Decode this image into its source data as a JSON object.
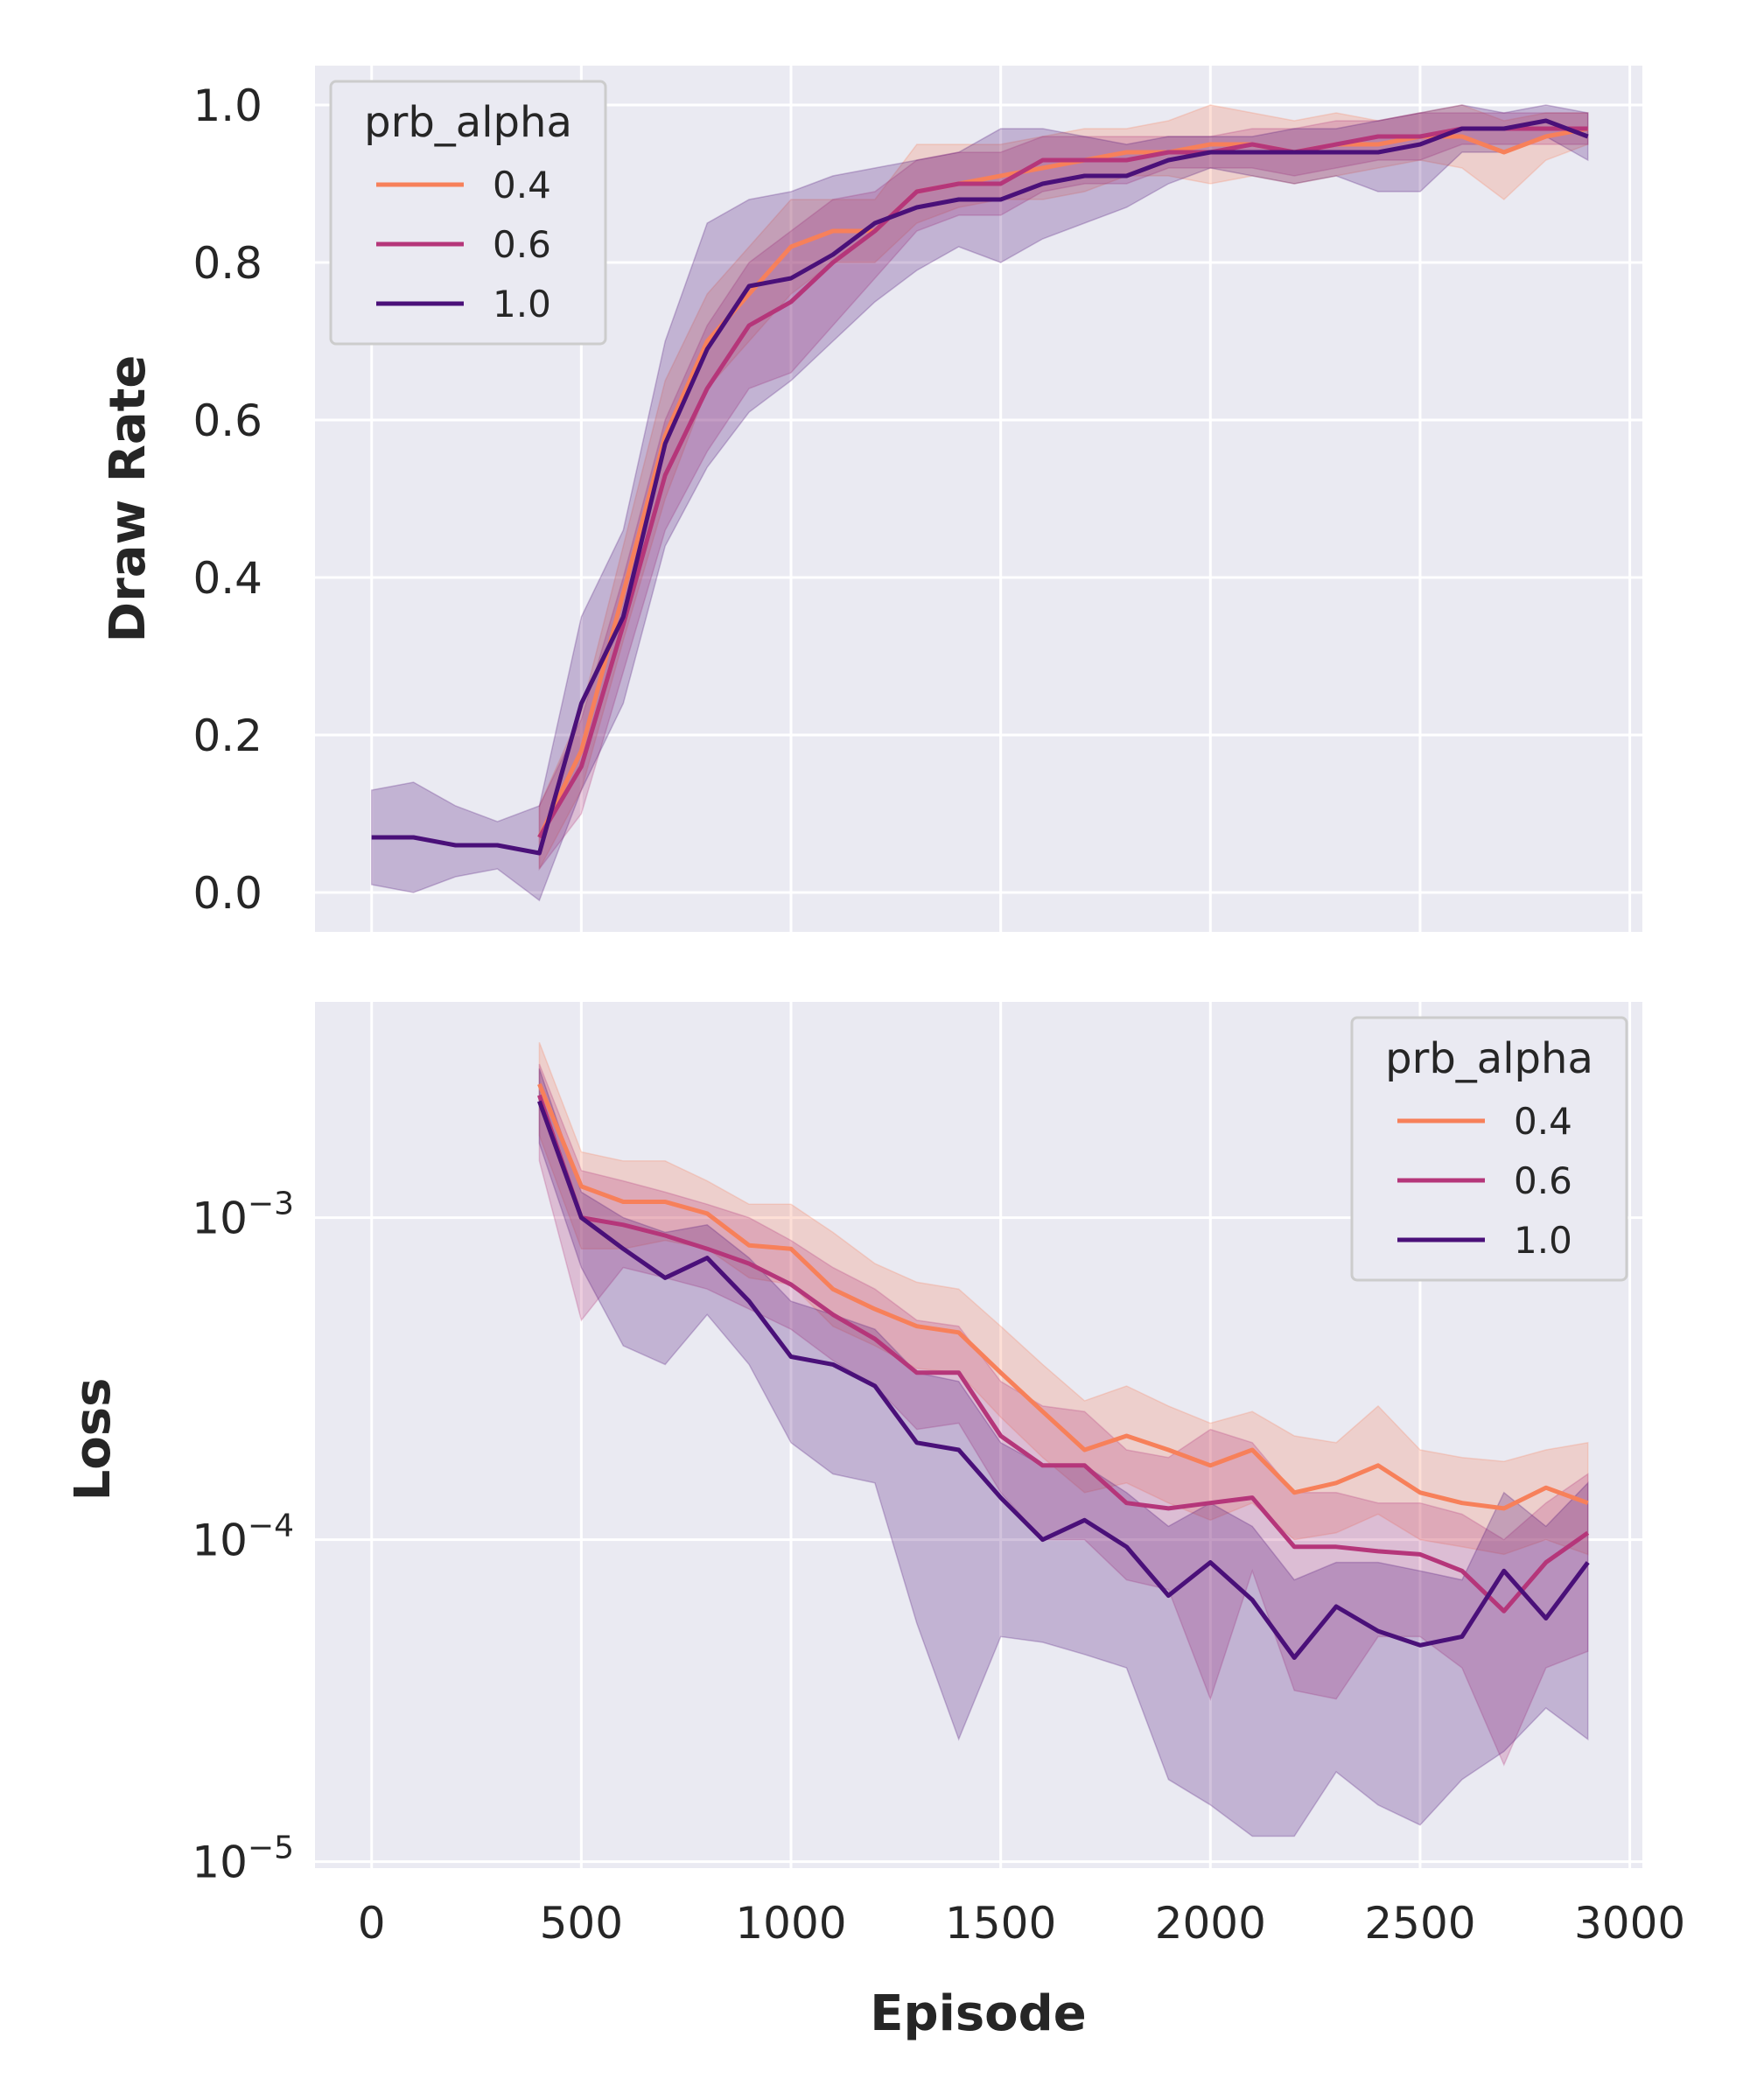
{
  "chart_data": [
    {
      "type": "line",
      "ylabel": "Draw Rate",
      "xlabel": "",
      "xlim": [
        -135,
        3030
      ],
      "ylim": [
        -0.05,
        1.05
      ],
      "y_scale": "linear",
      "yticks": [
        0.0,
        0.2,
        0.4,
        0.6,
        0.8,
        1.0
      ],
      "ytick_labels": [
        "0.0",
        "0.2",
        "0.4",
        "0.6",
        "0.8",
        "1.0"
      ],
      "xticks": [
        0,
        500,
        1000,
        1500,
        2000,
        2500,
        3000
      ],
      "grid": true,
      "legend": {
        "title": "prb_alpha",
        "position": "upper-left"
      },
      "series": [
        {
          "name": "0.4",
          "color": "#f7805a",
          "x": [
            400,
            500,
            600,
            700,
            800,
            900,
            1000,
            1100,
            1200,
            1300,
            1400,
            1500,
            1600,
            1700,
            1800,
            1900,
            2000,
            2100,
            2200,
            2300,
            2400,
            2500,
            2600,
            2700,
            2800,
            2900
          ],
          "y": [
            0.07,
            0.18,
            0.38,
            0.58,
            0.7,
            0.76,
            0.82,
            0.84,
            0.84,
            0.89,
            0.9,
            0.91,
            0.92,
            0.93,
            0.94,
            0.94,
            0.95,
            0.95,
            0.94,
            0.95,
            0.95,
            0.96,
            0.96,
            0.94,
            0.96,
            0.97
          ],
          "lower": [
            0.03,
            0.13,
            0.32,
            0.5,
            0.64,
            0.7,
            0.76,
            0.8,
            0.8,
            0.85,
            0.87,
            0.88,
            0.88,
            0.89,
            0.91,
            0.91,
            0.9,
            0.91,
            0.9,
            0.91,
            0.92,
            0.93,
            0.92,
            0.88,
            0.93,
            0.95
          ],
          "upper": [
            0.11,
            0.23,
            0.44,
            0.65,
            0.76,
            0.82,
            0.88,
            0.88,
            0.88,
            0.95,
            0.95,
            0.95,
            0.96,
            0.97,
            0.97,
            0.98,
            1.0,
            0.99,
            0.98,
            0.99,
            0.98,
            0.99,
            1.0,
            0.98,
            0.99,
            0.99
          ]
        },
        {
          "name": "0.6",
          "color": "#b5367a",
          "x": [
            400,
            500,
            600,
            700,
            800,
            900,
            1000,
            1100,
            1200,
            1300,
            1400,
            1500,
            1600,
            1700,
            1800,
            1900,
            2000,
            2100,
            2200,
            2300,
            2400,
            2500,
            2600,
            2700,
            2800,
            2900
          ],
          "y": [
            0.07,
            0.16,
            0.34,
            0.53,
            0.64,
            0.72,
            0.75,
            0.8,
            0.84,
            0.89,
            0.9,
            0.9,
            0.93,
            0.93,
            0.93,
            0.94,
            0.94,
            0.95,
            0.94,
            0.95,
            0.96,
            0.96,
            0.97,
            0.97,
            0.97,
            0.97
          ],
          "lower": [
            0.03,
            0.1,
            0.28,
            0.46,
            0.56,
            0.64,
            0.66,
            0.72,
            0.78,
            0.84,
            0.86,
            0.86,
            0.89,
            0.9,
            0.9,
            0.92,
            0.92,
            0.92,
            0.91,
            0.92,
            0.93,
            0.93,
            0.95,
            0.95,
            0.95,
            0.95
          ],
          "upper": [
            0.11,
            0.22,
            0.4,
            0.6,
            0.72,
            0.8,
            0.84,
            0.88,
            0.89,
            0.93,
            0.94,
            0.94,
            0.96,
            0.96,
            0.96,
            0.96,
            0.96,
            0.97,
            0.97,
            0.98,
            0.98,
            0.99,
            0.99,
            0.99,
            0.99,
            0.99
          ]
        },
        {
          "name": "1.0",
          "color": "#4a1079",
          "x": [
            0,
            100,
            200,
            300,
            400,
            500,
            600,
            700,
            800,
            900,
            1000,
            1100,
            1200,
            1300,
            1400,
            1500,
            1600,
            1700,
            1800,
            1900,
            2000,
            2100,
            2200,
            2300,
            2400,
            2500,
            2600,
            2700,
            2800,
            2900
          ],
          "y": [
            0.07,
            0.07,
            0.06,
            0.06,
            0.05,
            0.24,
            0.35,
            0.57,
            0.69,
            0.77,
            0.78,
            0.81,
            0.85,
            0.87,
            0.88,
            0.88,
            0.9,
            0.91,
            0.91,
            0.93,
            0.94,
            0.94,
            0.94,
            0.94,
            0.94,
            0.95,
            0.97,
            0.97,
            0.98,
            0.96
          ],
          "lower": [
            0.01,
            0.0,
            0.02,
            0.03,
            -0.01,
            0.13,
            0.24,
            0.44,
            0.54,
            0.61,
            0.65,
            0.7,
            0.75,
            0.79,
            0.82,
            0.8,
            0.83,
            0.85,
            0.87,
            0.9,
            0.92,
            0.91,
            0.9,
            0.91,
            0.89,
            0.89,
            0.94,
            0.94,
            0.96,
            0.93
          ],
          "upper": [
            0.13,
            0.14,
            0.11,
            0.09,
            0.11,
            0.35,
            0.46,
            0.7,
            0.85,
            0.88,
            0.89,
            0.91,
            0.92,
            0.93,
            0.94,
            0.97,
            0.97,
            0.96,
            0.95,
            0.96,
            0.96,
            0.96,
            0.97,
            0.97,
            0.98,
            0.99,
            1.0,
            0.99,
            1.0,
            0.99
          ]
        }
      ]
    },
    {
      "type": "line",
      "ylabel": "Loss",
      "xlabel": "Episode",
      "xlim": [
        -135,
        3030
      ],
      "ylim_log10": [
        -5.02,
        -2.33
      ],
      "y_scale": "log",
      "yticks_exponents": [
        -5,
        -4,
        -3
      ],
      "ytick_labels": [
        {
          "base": "10",
          "exponent": "−5"
        },
        {
          "base": "10",
          "exponent": "−4"
        },
        {
          "base": "10",
          "exponent": "−3"
        }
      ],
      "xticks": [
        0,
        500,
        1000,
        1500,
        2000,
        2500,
        3000
      ],
      "xtick_labels": [
        "0",
        "500",
        "1000",
        "1500",
        "2000",
        "2500",
        "3000"
      ],
      "grid": true,
      "legend": {
        "title": "prb_alpha",
        "position": "upper-right"
      },
      "series": [
        {
          "name": "0.4",
          "color": "#f7805a",
          "x": [
            400,
            500,
            600,
            700,
            800,
            900,
            1000,
            1100,
            1200,
            1300,
            1400,
            1500,
            1600,
            1700,
            1800,
            1900,
            2000,
            2100,
            2200,
            2300,
            2400,
            2500,
            2600,
            2700,
            2800,
            2900
          ],
          "y": [
            0.0026,
            0.00125,
            0.00112,
            0.00112,
            0.00103,
            0.00082,
            0.0008,
            0.0006,
            0.00052,
            0.00046,
            0.00044,
            0.00033,
            0.00025,
            0.00019,
            0.00021,
            0.00019,
            0.00017,
            0.00019,
            0.00014,
            0.00015,
            0.00017,
            0.00014,
            0.00013,
            0.000125,
            0.000145,
            0.00013
          ],
          "lower": [
            0.0018,
            0.0008,
            0.0008,
            0.00085,
            0.0008,
            0.00065,
            0.00062,
            0.00046,
            0.0004,
            0.00034,
            0.00033,
            0.00024,
            0.00018,
            0.00014,
            0.00015,
            0.00013,
            0.000115,
            0.00013,
            0.0001,
            0.000105,
            0.00012,
            0.0001,
            9.5e-05,
            9e-05,
            0.0001,
            9e-05
          ],
          "upper": [
            0.0035,
            0.0016,
            0.0015,
            0.0015,
            0.0013,
            0.0011,
            0.0011,
            0.0009,
            0.00072,
            0.00063,
            0.0006,
            0.00046,
            0.00035,
            0.00027,
            0.0003,
            0.00026,
            0.00023,
            0.00025,
            0.00021,
            0.0002,
            0.00026,
            0.00019,
            0.00018,
            0.000175,
            0.00019,
            0.0002
          ]
        },
        {
          "name": "0.6",
          "color": "#b5367a",
          "x": [
            400,
            500,
            600,
            700,
            800,
            900,
            1000,
            1100,
            1200,
            1300,
            1400,
            1500,
            1600,
            1700,
            1800,
            1900,
            2000,
            2100,
            2200,
            2300,
            2400,
            2500,
            2600,
            2700,
            2800,
            2900
          ],
          "y": [
            0.0024,
            0.001,
            0.00095,
            0.00088,
            0.0008,
            0.00072,
            0.00062,
            0.0005,
            0.00042,
            0.00033,
            0.00033,
            0.00021,
            0.00017,
            0.00017,
            0.00013,
            0.000125,
            0.00013,
            0.000135,
            9.5e-05,
            9.5e-05,
            9.2e-05,
            9e-05,
            8e-05,
            6e-05,
            8.5e-05,
            0.000105
          ],
          "lower": [
            0.0015,
            0.00048,
            0.0007,
            0.00065,
            0.0006,
            0.00052,
            0.00045,
            0.00036,
            0.0003,
            0.00022,
            0.00023,
            0.00014,
            0.0001,
            0.0001,
            7.5e-05,
            7e-05,
            3.2e-05,
            8e-05,
            3.4e-05,
            3.2e-05,
            5e-05,
            5e-05,
            4e-05,
            2e-05,
            4e-05,
            4.5e-05
          ],
          "upper": [
            0.003,
            0.0014,
            0.0013,
            0.0012,
            0.0011,
            0.001,
            0.00085,
            0.0007,
            0.0006,
            0.00048,
            0.00046,
            0.00031,
            0.00026,
            0.00025,
            0.00019,
            0.00018,
            0.00022,
            0.0002,
            0.00014,
            0.00014,
            0.00013,
            0.00013,
            0.00012,
            0.0001,
            0.00013,
            0.00016
          ]
        },
        {
          "name": "1.0",
          "color": "#4a1079",
          "x": [
            400,
            500,
            600,
            700,
            800,
            900,
            1000,
            1100,
            1200,
            1300,
            1400,
            1500,
            1600,
            1700,
            1800,
            1900,
            2000,
            2100,
            2200,
            2300,
            2400,
            2500,
            2600,
            2700,
            2800,
            2900
          ],
          "y": [
            0.0023,
            0.001,
            0.0008,
            0.00065,
            0.00075,
            0.00055,
            0.00037,
            0.00035,
            0.0003,
            0.0002,
            0.00019,
            0.000135,
            0.0001,
            0.000115,
            9.5e-05,
            6.7e-05,
            8.5e-05,
            6.5e-05,
            4.3e-05,
            6.2e-05,
            5.2e-05,
            4.7e-05,
            5e-05,
            8e-05,
            5.7e-05,
            8.5e-05
          ],
          "lower": [
            0.0017,
            0.0007,
            0.0004,
            0.00035,
            0.0005,
            0.00035,
            0.0002,
            0.00016,
            0.00015,
            5.5e-05,
            2.4e-05,
            5e-05,
            4.8e-05,
            4.4e-05,
            4e-05,
            1.8e-05,
            1.5e-05,
            1.2e-05,
            1.2e-05,
            1.9e-05,
            1.5e-05,
            1.3e-05,
            1.8e-05,
            2.2e-05,
            3e-05,
            2.4e-05
          ],
          "upper": [
            0.0029,
            0.0012,
            0.001,
            0.0009,
            0.00095,
            0.00075,
            0.00055,
            0.0005,
            0.00045,
            0.00033,
            0.00031,
            0.0002,
            0.00017,
            0.00017,
            0.00014,
            0.00011,
            0.00013,
            0.00011,
            7.5e-05,
            8.5e-05,
            8.5e-05,
            8e-05,
            7.5e-05,
            0.00014,
            0.00011,
            0.00015
          ]
        }
      ]
    }
  ]
}
